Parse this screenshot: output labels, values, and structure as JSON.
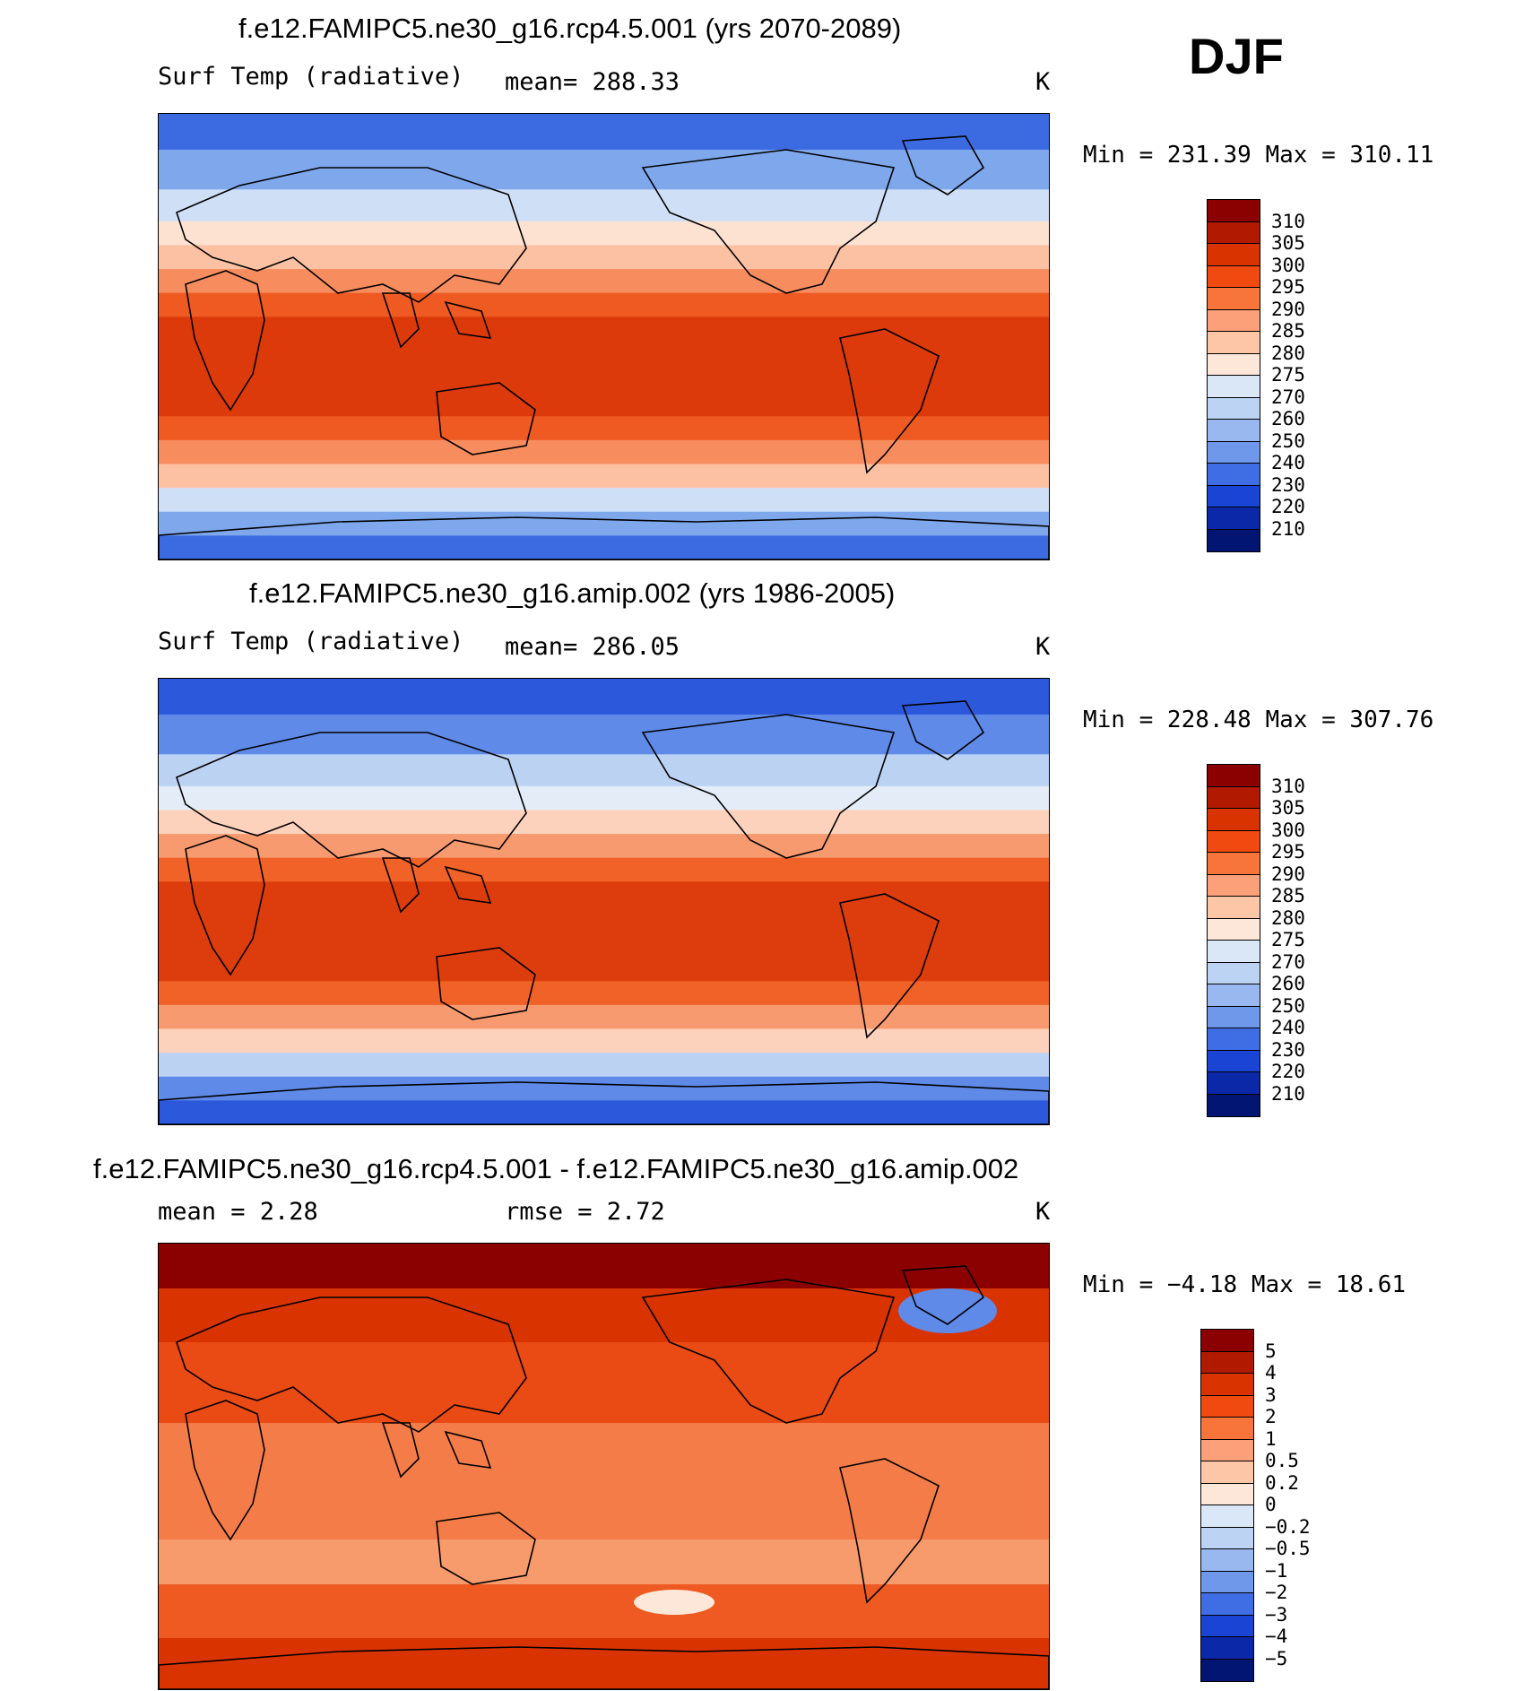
{
  "season": "DJF",
  "panels": [
    {
      "title": "f.e12.FAMIPC5.ne30_g16.rcp4.5.001 (yrs 2070-2089)",
      "variable": "Surf Temp (radiative)",
      "stat": "mean=  288.33",
      "units": "K",
      "min_max": "Min  =  231.39  Max  =  310.11",
      "colorbar_labels": [
        "310",
        "305",
        "300",
        "295",
        "290",
        "285",
        "280",
        "275",
        "270",
        "260",
        "250",
        "240",
        "230",
        "220",
        "210"
      ],
      "colorbar_colors": [
        "#8b0000",
        "#b21a00",
        "#d93300",
        "#f04a10",
        "#f7743a",
        "#fba079",
        "#fcc6a7",
        "#fde7d8",
        "#d9e7f7",
        "#bcd3f4",
        "#99b8f0",
        "#6f98ea",
        "#3f6de4",
        "#1a44d4",
        "#0a28a8",
        "#031573"
      ],
      "map_palette": {
        "tropics": "#dc3a0a",
        "warm": "#ee5a22",
        "mild": "#f78d5f",
        "cool": "#fcc0a3",
        "cold": "#fde2d2",
        "polar": "#cfdff6",
        "ice": "#7fa7ec",
        "deep": "#3c6ae0"
      }
    },
    {
      "title": "f.e12.FAMIPC5.ne30_g16.amip.002 (yrs 1986-2005)",
      "variable": "Surf Temp (radiative)",
      "stat": "mean=  286.05",
      "units": "K",
      "min_max": "Min  =  228.48  Max  =  307.76",
      "colorbar_labels": [
        "310",
        "305",
        "300",
        "295",
        "290",
        "285",
        "280",
        "275",
        "270",
        "260",
        "250",
        "240",
        "230",
        "220",
        "210"
      ],
      "colorbar_colors": [
        "#8b0000",
        "#b21a00",
        "#d93300",
        "#f04a10",
        "#f7743a",
        "#fba079",
        "#fcc6a7",
        "#fde7d8",
        "#d9e7f7",
        "#bcd3f4",
        "#99b8f0",
        "#6f98ea",
        "#3f6de4",
        "#1a44d4",
        "#0a28a8",
        "#031573"
      ],
      "map_palette": {
        "tropics": "#dd3d0c",
        "warm": "#f06228",
        "mild": "#f89a70",
        "cool": "#fdd2bc",
        "cold": "#e4ecf8",
        "polar": "#bcd2f3",
        "ice": "#5f8ae8",
        "deep": "#2c58dc"
      }
    },
    {
      "title": "f.e12.FAMIPC5.ne30_g16.rcp4.5.001 - f.e12.FAMIPC5.ne30_g16.amip.002",
      "stat_mean": "mean  =     2.28",
      "stat_rmse": "rmse  =     2.72",
      "units": "K",
      "min_max": "Min  =   −4.18  Max  =    18.61",
      "colorbar_labels": [
        "5",
        "4",
        "3",
        "2",
        "1",
        "0.5",
        "0.2",
        "0",
        "−0.2",
        "−0.5",
        "−1",
        "−2",
        "−3",
        "−4",
        "−5"
      ],
      "colorbar_colors": [
        "#8b0000",
        "#b21a00",
        "#d93300",
        "#f04a10",
        "#f7743a",
        "#fba079",
        "#fcc6a7",
        "#fde7d8",
        "#d9e7f7",
        "#bcd3f4",
        "#99b8f0",
        "#6f98ea",
        "#3f6de4",
        "#1a44d4",
        "#0a28a8",
        "#031573"
      ],
      "map_palette": {
        "tropics": "#f47c48",
        "warm": "#ee5a22",
        "mild": "#f79a6c",
        "cool": "#ea4a14",
        "cold": "#d93300",
        "polar": "#8b0000",
        "ice": "#5f8ae8",
        "deep": "#fde7d8"
      }
    }
  ]
}
